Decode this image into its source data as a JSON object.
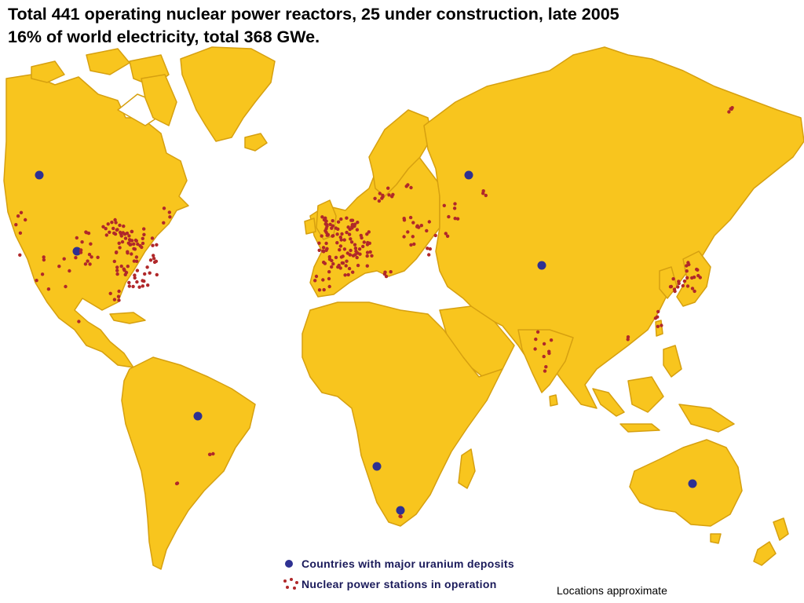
{
  "title": {
    "line1": "Total 441 operating nuclear power reactors, 25 under construction, late 2005",
    "line2": "16% of world electricity, total 368 GWe."
  },
  "legend": {
    "uranium_label": "Countries with major uranium deposits",
    "nuclear_label": "Nuclear power stations in operation"
  },
  "note": "Locations approximate",
  "colors": {
    "land": "#f8c51e",
    "land_edge": "#d6a010",
    "uranium_dot": "#2e3192",
    "reactor_dot": "#b0282a"
  }
}
